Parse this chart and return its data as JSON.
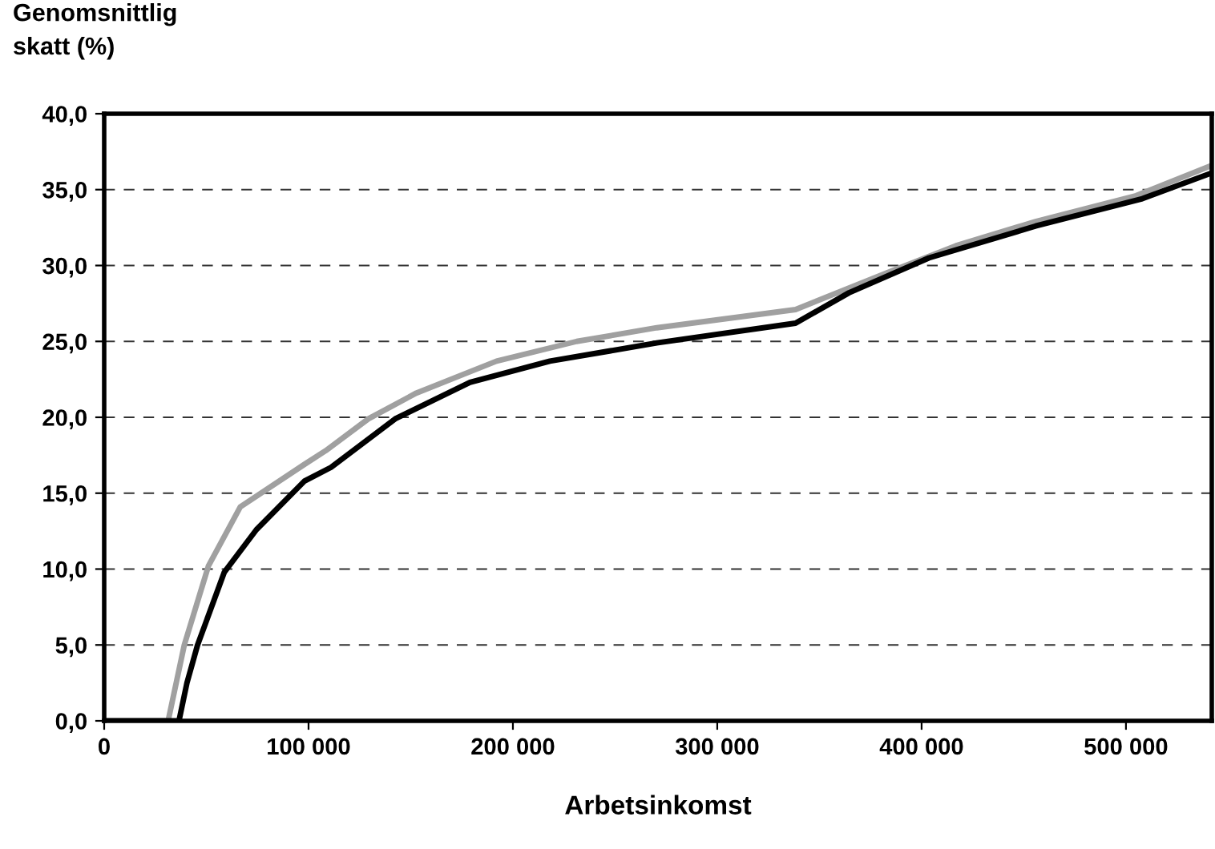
{
  "chart_data": {
    "type": "line",
    "title": "Genomsnittlig\nskatt (%)",
    "xlabel": "Arbetsinkomst",
    "xlim": [
      0,
      542000
    ],
    "ylim": [
      0,
      40
    ],
    "xticks": [
      {
        "value": 0,
        "label": "0"
      },
      {
        "value": 100000,
        "label": "100 000"
      },
      {
        "value": 200000,
        "label": "200 000"
      },
      {
        "value": 300000,
        "label": "300 000"
      },
      {
        "value": 400000,
        "label": "400 000"
      },
      {
        "value": 500000,
        "label": "500 000"
      }
    ],
    "yticks": [
      {
        "value": 0,
        "label": "0,0"
      },
      {
        "value": 5,
        "label": "5,0"
      },
      {
        "value": 10,
        "label": "10,0"
      },
      {
        "value": 15,
        "label": "15,0"
      },
      {
        "value": 20,
        "label": "20,0"
      },
      {
        "value": 25,
        "label": "25,0"
      },
      {
        "value": 30,
        "label": "30,0"
      },
      {
        "value": 35,
        "label": "35,0"
      },
      {
        "value": 40,
        "label": "40,0"
      }
    ],
    "grid": "y",
    "legend": false,
    "series": [
      {
        "color": "#a0a0a0",
        "x": [
          0,
          31300,
          39200,
          51000,
          66600,
          98000,
          108400,
          129300,
          152800,
          192000,
          231200,
          270400,
          338300,
          382700,
          416700,
          455800,
          505000,
          542000
        ],
        "values": [
          0,
          0,
          5.0,
          10.2,
          14.1,
          16.9,
          17.8,
          19.9,
          21.6,
          23.7,
          25.0,
          25.9,
          27.1,
          29.5,
          31.3,
          32.9,
          34.6,
          36.6
        ]
      },
      {
        "color": "#000000",
        "x": [
          0,
          36600,
          40500,
          45700,
          58800,
          74500,
          98000,
          111000,
          142400,
          179000,
          218100,
          270400,
          338300,
          364400,
          403600,
          455800,
          508000,
          542000
        ],
        "values": [
          0,
          0,
          2.5,
          5.0,
          9.8,
          12.6,
          15.8,
          16.7,
          19.9,
          22.3,
          23.7,
          24.9,
          26.2,
          28.2,
          30.5,
          32.6,
          34.4,
          36.1
        ]
      }
    ]
  }
}
